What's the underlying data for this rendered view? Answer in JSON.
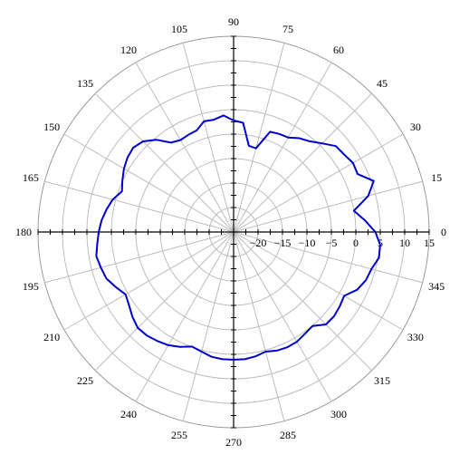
{
  "chart_data": {
    "type": "polar-line",
    "angle_unit": "degrees",
    "angle_step": 15,
    "angle_tick_labels": [
      "0",
      "15",
      "30",
      "45",
      "60",
      "75",
      "90",
      "105",
      "120",
      "135",
      "150",
      "165",
      "180",
      "195",
      "210",
      "225",
      "240",
      "255",
      "270",
      "285",
      "300",
      "315",
      "330",
      "345"
    ],
    "radial_range": [
      -25,
      15
    ],
    "radial_rings": [
      -20,
      -15,
      -10,
      -5,
      0,
      5,
      10,
      15
    ],
    "radial_tick_labels": [
      "−20",
      "−15",
      "−10",
      "−5",
      "0",
      "5",
      "10",
      "15"
    ],
    "grid": true,
    "series_color": "#0000cc",
    "series": [
      {
        "theta": [
          0,
          5,
          10,
          15,
          20,
          25,
          30,
          35,
          40,
          45,
          50,
          55,
          60,
          65,
          70,
          75,
          80,
          85,
          90,
          95,
          100,
          105,
          110,
          115,
          120,
          125,
          130,
          135,
          140,
          145,
          150,
          155,
          160,
          165,
          170,
          175,
          180,
          185,
          190,
          195,
          200,
          205,
          210,
          215,
          220,
          225,
          230,
          235,
          240,
          245,
          250,
          255,
          260,
          265,
          270,
          275,
          280,
          285,
          290,
          295,
          300,
          305,
          310,
          315,
          320,
          325,
          330,
          335,
          340,
          345,
          350,
          355,
          360
        ],
        "r": [
          4,
          2,
          0,
          3.5,
          5.5,
          3,
          3.2,
          2.6,
          2.3,
          0.6,
          -0.8,
          -1.6,
          -2.7,
          -2.9,
          -3.2,
          -7.3,
          -7.1,
          -2.6,
          -2.2,
          -1.1,
          -1.7,
          -1.6,
          -2.9,
          -3.1,
          -3.3,
          -2.7,
          -0.4,
          1.2,
          1.8,
          1.5,
          0.9,
          0.1,
          -0.7,
          0.6,
          1.4,
          2.1,
          2.6,
          3.0,
          3.5,
          3.1,
          2.7,
          1.6,
          0.5,
          1.1,
          2.0,
          2.7,
          2.6,
          2.2,
          1.7,
          0.9,
          -0.1,
          0.3,
          0.9,
          1.1,
          1.1,
          1.1,
          0.8,
          0.3,
          0.8,
          1.0,
          0.9,
          0.4,
          0.1,
          1.7,
          1.8,
          1.5,
          1.1,
          2.9,
          3.8,
          4.2,
          5.2,
          5.1,
          4
        ]
      }
    ]
  }
}
